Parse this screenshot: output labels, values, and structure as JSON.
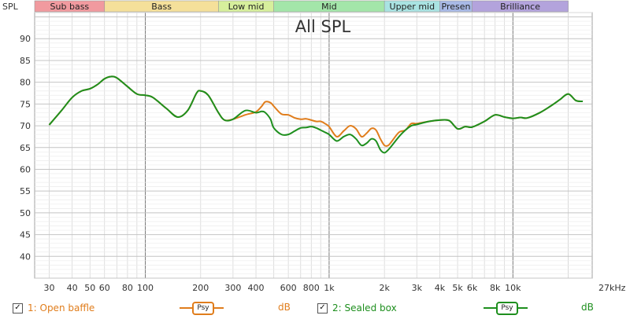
{
  "ylabel": "SPL",
  "xunit_label": "27kHz",
  "bands": [
    {
      "label": "Sub bass",
      "from": 25,
      "to": 60,
      "color": "#f19a9f"
    },
    {
      "label": "Bass",
      "from": 60,
      "to": 250,
      "color": "#f5e09a"
    },
    {
      "label": "Low mid",
      "from": 250,
      "to": 500,
      "color": "#d7ef9c"
    },
    {
      "label": "Mid",
      "from": 500,
      "to": 2000,
      "color": "#a3e6a9"
    },
    {
      "label": "Upper mid",
      "from": 2000,
      "to": 4000,
      "color": "#a9e3e2"
    },
    {
      "label": "Presen",
      "from": 4000,
      "to": 6000,
      "color": "#a8b9e6"
    },
    {
      "label": "Brilliance",
      "from": 6000,
      "to": 20000,
      "color": "#b3a3dc"
    }
  ],
  "legend": {
    "item1": {
      "check": "✓",
      "label": "1: Open baffle",
      "psy": "Psy",
      "unit": "dB"
    },
    "item2": {
      "check": "✓",
      "label": "2: Sealed box",
      "psy": "Psy",
      "unit": "dB"
    }
  },
  "chart_data": {
    "type": "line",
    "title": "All SPL",
    "xlabel": "",
    "ylabel": "SPL",
    "xscale": "log",
    "xlim": [
      25,
      27000
    ],
    "ylim": [
      35,
      96
    ],
    "grid": true,
    "x_ticks": [
      {
        "value": 30,
        "label": "30"
      },
      {
        "value": 40,
        "label": "40"
      },
      {
        "value": 50,
        "label": "50"
      },
      {
        "value": 60,
        "label": "60"
      },
      {
        "value": 80,
        "label": "80"
      },
      {
        "value": 100,
        "label": "100"
      },
      {
        "value": 200,
        "label": "200"
      },
      {
        "value": 300,
        "label": "300"
      },
      {
        "value": 400,
        "label": "400"
      },
      {
        "value": 600,
        "label": "600"
      },
      {
        "value": 800,
        "label": "800"
      },
      {
        "value": 1000,
        "label": "1k"
      },
      {
        "value": 2000,
        "label": "2k"
      },
      {
        "value": 3000,
        "label": "3k"
      },
      {
        "value": 4000,
        "label": "4k"
      },
      {
        "value": 5000,
        "label": "5k"
      },
      {
        "value": 6000,
        "label": "6k"
      },
      {
        "value": 8000,
        "label": "8k"
      },
      {
        "value": 10000,
        "label": "10k"
      }
    ],
    "y_ticks": [
      40,
      45,
      50,
      55,
      60,
      65,
      70,
      75,
      80,
      85,
      90
    ],
    "series": [
      {
        "name": "1: Open baffle",
        "color": "#e07d1c",
        "x": [
          30,
          35,
          40,
          45,
          50,
          55,
          60,
          65,
          70,
          80,
          90,
          100,
          110,
          130,
          150,
          170,
          190,
          200,
          220,
          250,
          270,
          300,
          350,
          400,
          430,
          450,
          480,
          500,
          550,
          600,
          650,
          700,
          750,
          800,
          850,
          900,
          950,
          1000,
          1100,
          1200,
          1300,
          1400,
          1500,
          1600,
          1700,
          1800,
          1900,
          2000,
          2100,
          2200,
          2400,
          2600,
          2800,
          3000,
          3500,
          4000,
          4500,
          5000,
          5500,
          6000,
          7000,
          8000,
          9000,
          10000,
          11000,
          12000,
          14000,
          16000,
          18000,
          20000,
          22000,
          24000
        ],
        "values": [
          70.2,
          73.5,
          76.5,
          78.0,
          78.5,
          79.5,
          80.8,
          81.3,
          81.0,
          79.0,
          77.3,
          77.0,
          76.5,
          74.0,
          72.0,
          73.5,
          77.5,
          78.0,
          77.0,
          73.0,
          71.3,
          71.5,
          72.5,
          73.2,
          74.5,
          75.5,
          75.3,
          74.5,
          72.7,
          72.5,
          71.8,
          71.5,
          71.6,
          71.3,
          71.0,
          71.0,
          70.5,
          69.8,
          67.5,
          68.8,
          70.0,
          69.3,
          67.5,
          68.3,
          69.4,
          69.0,
          67.0,
          65.5,
          65.5,
          66.5,
          68.5,
          69.0,
          70.5,
          70.5,
          71.0,
          71.3,
          71.2,
          69.3,
          69.8,
          69.7,
          71.0,
          72.5,
          72.0,
          71.7,
          71.9,
          71.8,
          73.0,
          74.5,
          76.0,
          77.3,
          75.8,
          75.6
        ]
      },
      {
        "name": "2: Sealed box",
        "color": "#1e8f1e",
        "x": [
          30,
          35,
          40,
          45,
          50,
          55,
          60,
          65,
          70,
          80,
          90,
          100,
          110,
          130,
          150,
          170,
          190,
          200,
          220,
          250,
          270,
          300,
          350,
          400,
          430,
          450,
          480,
          500,
          550,
          600,
          650,
          700,
          750,
          800,
          850,
          900,
          950,
          1000,
          1100,
          1200,
          1300,
          1400,
          1500,
          1600,
          1700,
          1800,
          1900,
          2000,
          2100,
          2200,
          2400,
          2600,
          2800,
          3000,
          3500,
          4000,
          4500,
          5000,
          5500,
          6000,
          7000,
          8000,
          9000,
          10000,
          11000,
          12000,
          14000,
          16000,
          18000,
          20000,
          22000,
          24000
        ],
        "values": [
          70.2,
          73.5,
          76.5,
          78.0,
          78.5,
          79.5,
          80.8,
          81.3,
          81.0,
          79.0,
          77.3,
          77.0,
          76.5,
          74.0,
          72.0,
          73.5,
          77.5,
          78.0,
          77.0,
          73.0,
          71.3,
          71.5,
          73.5,
          73.0,
          73.3,
          73.0,
          71.5,
          69.5,
          68.0,
          68.0,
          68.8,
          69.5,
          69.6,
          69.8,
          69.5,
          69.0,
          68.5,
          68.0,
          66.5,
          67.5,
          68.0,
          67.0,
          65.5,
          66.0,
          67.0,
          66.5,
          64.5,
          63.8,
          64.5,
          65.5,
          67.5,
          69.0,
          70.0,
          70.3,
          71.0,
          71.3,
          71.2,
          69.3,
          69.8,
          69.7,
          71.0,
          72.5,
          72.0,
          71.7,
          71.9,
          71.8,
          73.0,
          74.5,
          76.0,
          77.3,
          75.8,
          75.6
        ]
      }
    ]
  }
}
